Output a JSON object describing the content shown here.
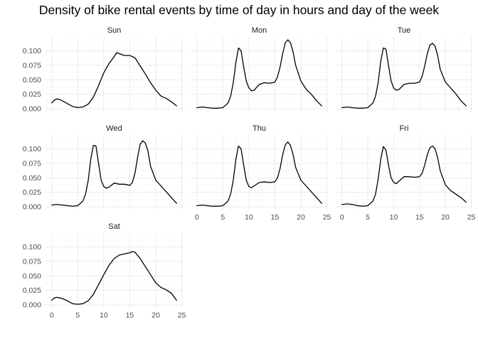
{
  "chart_data": {
    "type": "line",
    "title": "Density of bike rental events by time of day in hours and day of the week",
    "xlabel": "",
    "ylabel": "",
    "xlim": [
      0,
      24
    ],
    "ylim": [
      0,
      0.12
    ],
    "x_ticks": [
      "0",
      "5",
      "10",
      "15",
      "20",
      "25"
    ],
    "y_ticks": [
      "0.000",
      "0.025",
      "0.050",
      "0.075",
      "0.100"
    ],
    "grid": true,
    "facets": [
      {
        "label": "Sun",
        "x": [
          0,
          0.5,
          1,
          1.5,
          2,
          3,
          4,
          5,
          6,
          7,
          8,
          9,
          10,
          11,
          12,
          12.5,
          13,
          14,
          15,
          16,
          17,
          18,
          19,
          20,
          21,
          22,
          23,
          24
        ],
        "y": [
          0.01,
          0.015,
          0.017,
          0.016,
          0.014,
          0.009,
          0.004,
          0.002,
          0.003,
          0.008,
          0.02,
          0.04,
          0.062,
          0.078,
          0.09,
          0.097,
          0.095,
          0.092,
          0.092,
          0.088,
          0.074,
          0.06,
          0.045,
          0.032,
          0.022,
          0.018,
          0.012,
          0.005
        ]
      },
      {
        "label": "Mon",
        "x": [
          0,
          1,
          2,
          3,
          4,
          5,
          6,
          6.5,
          7,
          7.5,
          8,
          8.5,
          9,
          9.5,
          10,
          10.5,
          11,
          12,
          13,
          14,
          15,
          15.5,
          16,
          16.5,
          17,
          17.5,
          18,
          18.5,
          19,
          20,
          21,
          22,
          23,
          24
        ],
        "y": [
          0.002,
          0.003,
          0.002,
          0.001,
          0.001,
          0.002,
          0.01,
          0.022,
          0.045,
          0.08,
          0.105,
          0.1,
          0.072,
          0.048,
          0.036,
          0.031,
          0.032,
          0.042,
          0.045,
          0.044,
          0.046,
          0.055,
          0.072,
          0.095,
          0.114,
          0.119,
          0.114,
          0.098,
          0.075,
          0.048,
          0.034,
          0.025,
          0.014,
          0.005
        ]
      },
      {
        "label": "Tue",
        "x": [
          0,
          1,
          2,
          3,
          4,
          5,
          6,
          6.5,
          7,
          7.5,
          8,
          8.5,
          9,
          9.5,
          10,
          10.5,
          11,
          12,
          13,
          14,
          15,
          15.5,
          16,
          16.5,
          17,
          17.5,
          18,
          18.5,
          19,
          20,
          21,
          22,
          23,
          24
        ],
        "y": [
          0.002,
          0.003,
          0.002,
          0.001,
          0.001,
          0.002,
          0.01,
          0.022,
          0.045,
          0.082,
          0.105,
          0.103,
          0.075,
          0.048,
          0.036,
          0.032,
          0.033,
          0.042,
          0.044,
          0.044,
          0.046,
          0.056,
          0.074,
          0.095,
          0.11,
          0.113,
          0.108,
          0.092,
          0.068,
          0.046,
          0.036,
          0.026,
          0.014,
          0.005
        ]
      },
      {
        "label": "Wed",
        "x": [
          0,
          1,
          2,
          3,
          4,
          5,
          6,
          6.5,
          7,
          7.5,
          8,
          8.5,
          9,
          9.5,
          10,
          10.5,
          11,
          12,
          13,
          14,
          15,
          15.5,
          16,
          16.5,
          17,
          17.5,
          18,
          18.5,
          19,
          20,
          21,
          22,
          23,
          24
        ],
        "y": [
          0.003,
          0.004,
          0.003,
          0.002,
          0.001,
          0.002,
          0.01,
          0.022,
          0.045,
          0.082,
          0.106,
          0.105,
          0.075,
          0.046,
          0.035,
          0.032,
          0.034,
          0.041,
          0.039,
          0.039,
          0.037,
          0.042,
          0.058,
          0.085,
          0.108,
          0.114,
          0.11,
          0.096,
          0.07,
          0.046,
          0.036,
          0.026,
          0.016,
          0.006
        ]
      },
      {
        "label": "Thu",
        "x": [
          0,
          1,
          2,
          3,
          4,
          5,
          6,
          6.5,
          7,
          7.5,
          8,
          8.5,
          9,
          9.5,
          10,
          10.5,
          11,
          12,
          13,
          14,
          15,
          15.5,
          16,
          16.5,
          17,
          17.5,
          18,
          18.5,
          19,
          20,
          21,
          22,
          23,
          24
        ],
        "y": [
          0.002,
          0.003,
          0.002,
          0.001,
          0.001,
          0.002,
          0.01,
          0.022,
          0.046,
          0.082,
          0.105,
          0.1,
          0.072,
          0.046,
          0.035,
          0.033,
          0.036,
          0.042,
          0.043,
          0.042,
          0.043,
          0.05,
          0.066,
          0.09,
          0.107,
          0.112,
          0.106,
          0.09,
          0.068,
          0.046,
          0.036,
          0.026,
          0.016,
          0.006
        ]
      },
      {
        "label": "Fri",
        "x": [
          0,
          1,
          2,
          3,
          4,
          5,
          6,
          6.5,
          7,
          7.5,
          8,
          8.5,
          9,
          9.5,
          10,
          10.5,
          11,
          12,
          13,
          14,
          15,
          15.5,
          16,
          16.5,
          17,
          17.5,
          18,
          18.5,
          19,
          20,
          21,
          22,
          23,
          24
        ],
        "y": [
          0.004,
          0.005,
          0.004,
          0.002,
          0.001,
          0.002,
          0.01,
          0.022,
          0.048,
          0.082,
          0.104,
          0.098,
          0.072,
          0.05,
          0.042,
          0.04,
          0.044,
          0.052,
          0.052,
          0.051,
          0.052,
          0.058,
          0.072,
          0.09,
          0.102,
          0.105,
          0.1,
          0.085,
          0.062,
          0.038,
          0.028,
          0.022,
          0.016,
          0.008
        ]
      },
      {
        "label": "Sat",
        "x": [
          0,
          0.5,
          1,
          1.5,
          2,
          3,
          4,
          5,
          6,
          7,
          8,
          9,
          10,
          11,
          12,
          13,
          14,
          15,
          15.5,
          16,
          17,
          18,
          19,
          20,
          21,
          22,
          23,
          24
        ],
        "y": [
          0.008,
          0.012,
          0.013,
          0.012,
          0.011,
          0.007,
          0.002,
          0.001,
          0.002,
          0.007,
          0.018,
          0.035,
          0.052,
          0.068,
          0.08,
          0.086,
          0.088,
          0.09,
          0.092,
          0.091,
          0.08,
          0.066,
          0.052,
          0.038,
          0.03,
          0.026,
          0.02,
          0.008
        ]
      }
    ]
  }
}
